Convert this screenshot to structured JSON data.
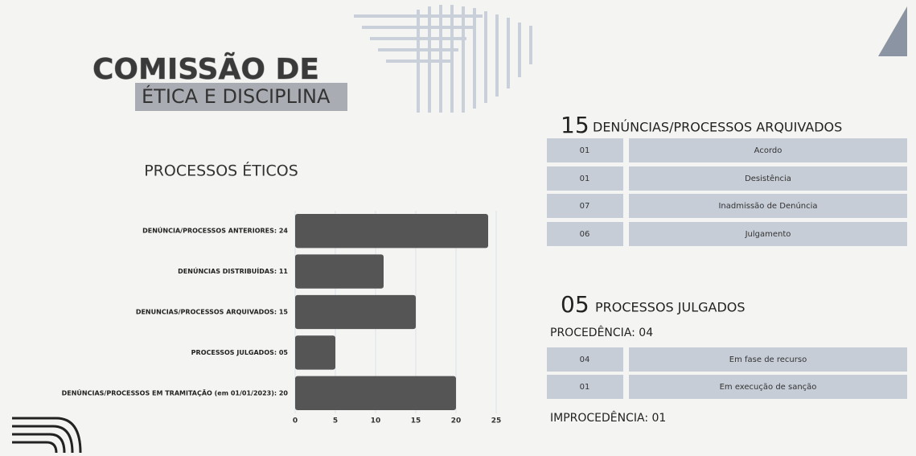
{
  "header": {
    "title_line1": "COMISSÃO DE",
    "title_line2": "ÉTICA E DISCIPLINA"
  },
  "chart_data": {
    "type": "bar",
    "title": "PROCESSOS ÉTICOS",
    "categories": [
      "DENÚNCIA/PROCESSOS ANTERIORES: 24",
      "DENÚNCIAS DISTRIBUÍDAS: 11",
      "DENUNCIAS/PROCESSOS ARQUIVADOS: 15",
      "PROCESSOS JULGADOS: 05",
      "DENÚNCIAS/PROCESSOS EM TRAMITAÇÃO (em 01/01/2023): 20"
    ],
    "values": [
      24,
      11,
      15,
      5,
      20
    ],
    "color": "#555555",
    "xlim": [
      0,
      25
    ],
    "xticks": [
      0,
      5,
      10,
      15,
      20,
      25
    ],
    "grid": true
  },
  "archived": {
    "count": "15",
    "title": "DENÚNCIAS/PROCESSOS ARQUIVADOS",
    "rows": [
      [
        "01",
        "Acordo"
      ],
      [
        "01",
        "Desistência"
      ],
      [
        "07",
        "Inadmissão de Denúncia"
      ],
      [
        "06",
        "Julgamento"
      ]
    ]
  },
  "judged": {
    "count": "05",
    "title": "PROCESSOS JULGADOS",
    "procedencia": "PROCEDÊNCIA: 04",
    "rows": [
      [
        "04",
        "Em fase de recurso"
      ],
      [
        "01",
        "Em execução de sanção"
      ]
    ],
    "improcedencia": "IMPROCEDÊNCIA: 01"
  }
}
